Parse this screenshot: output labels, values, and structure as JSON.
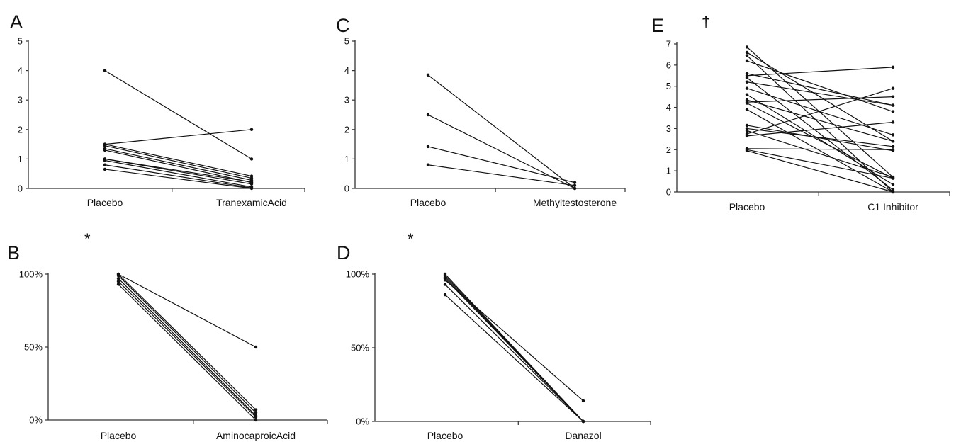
{
  "chart_data": [
    {
      "id": "A",
      "panel_label": "A",
      "marker": "",
      "type": "line",
      "categories": [
        "Placebo",
        "TranexamicAcid"
      ],
      "y_ticks": [
        "0",
        "1",
        "2",
        "3",
        "4",
        "5"
      ],
      "ylim": [
        0,
        5
      ],
      "series": [
        {
          "values": [
            4.0,
            1.0
          ]
        },
        {
          "values": [
            1.5,
            2.0
          ]
        },
        {
          "values": [
            1.5,
            0.42
          ]
        },
        {
          "values": [
            1.45,
            0.35
          ]
        },
        {
          "values": [
            1.35,
            0.28
          ]
        },
        {
          "values": [
            1.3,
            0.2
          ]
        },
        {
          "values": [
            1.0,
            0.15
          ]
        },
        {
          "values": [
            1.0,
            0.22
          ]
        },
        {
          "values": [
            0.95,
            0.05
          ]
        },
        {
          "values": [
            0.8,
            0.02
          ]
        },
        {
          "values": [
            0.65,
            0.0
          ]
        }
      ]
    },
    {
      "id": "C",
      "panel_label": "C",
      "marker": "",
      "type": "line",
      "categories": [
        "Placebo",
        "Methyltestosterone"
      ],
      "y_ticks": [
        "0",
        "1",
        "2",
        "3",
        "4",
        "5"
      ],
      "ylim": [
        0,
        5
      ],
      "series": [
        {
          "values": [
            3.85,
            0.0
          ]
        },
        {
          "values": [
            2.5,
            0.0
          ]
        },
        {
          "values": [
            1.42,
            0.2
          ]
        },
        {
          "values": [
            0.8,
            0.1
          ]
        }
      ]
    },
    {
      "id": "E",
      "panel_label": "E",
      "marker": "†",
      "type": "line",
      "categories": [
        "Placebo",
        "C1 Inhibitor"
      ],
      "y_ticks": [
        "0",
        "1",
        "2",
        "3",
        "4",
        "5",
        "6",
        "7"
      ],
      "ylim": [
        0,
        7
      ],
      "series": [
        {
          "values": [
            6.85,
            0.7
          ]
        },
        {
          "values": [
            6.6,
            2.4
          ]
        },
        {
          "values": [
            6.45,
            0.0
          ]
        },
        {
          "values": [
            6.2,
            3.8
          ]
        },
        {
          "values": [
            5.6,
            4.1
          ]
        },
        {
          "values": [
            5.5,
            5.9
          ]
        },
        {
          "values": [
            5.4,
            0.1
          ]
        },
        {
          "values": [
            5.2,
            4.1
          ]
        },
        {
          "values": [
            4.9,
            2.7
          ]
        },
        {
          "values": [
            4.6,
            0.35
          ]
        },
        {
          "values": [
            4.35,
            2.4
          ]
        },
        {
          "values": [
            4.25,
            4.5
          ]
        },
        {
          "values": [
            4.2,
            0.65
          ]
        },
        {
          "values": [
            3.9,
            0.0
          ]
        },
        {
          "values": [
            3.15,
            1.95
          ]
        },
        {
          "values": [
            3.0,
            2.15
          ]
        },
        {
          "values": [
            2.9,
            0.7
          ]
        },
        {
          "values": [
            2.75,
            4.9
          ]
        },
        {
          "values": [
            2.65,
            3.3
          ]
        },
        {
          "values": [
            2.05,
            2.0
          ]
        },
        {
          "values": [
            2.0,
            0.65
          ]
        },
        {
          "values": [
            1.95,
            0.0
          ]
        }
      ]
    },
    {
      "id": "B",
      "panel_label": "B",
      "marker": "*",
      "type": "line",
      "categories": [
        "Placebo",
        "AminocaproicAcid"
      ],
      "y_ticks": [
        "0%",
        "50%",
        "100%"
      ],
      "ylim": [
        0,
        100
      ],
      "series": [
        {
          "values": [
            100,
            50
          ]
        },
        {
          "values": [
            100,
            7
          ]
        },
        {
          "values": [
            99,
            5
          ]
        },
        {
          "values": [
            97,
            3
          ]
        },
        {
          "values": [
            95,
            2
          ]
        },
        {
          "values": [
            93,
            0
          ]
        }
      ]
    },
    {
      "id": "D",
      "panel_label": "D",
      "marker": "*",
      "type": "line",
      "categories": [
        "Placebo",
        "Danazol"
      ],
      "y_ticks": [
        "0%",
        "50%",
        "100%"
      ],
      "ylim": [
        0,
        100
      ],
      "series": [
        {
          "values": [
            100,
            0
          ]
        },
        {
          "values": [
            99,
            0
          ]
        },
        {
          "values": [
            98,
            0
          ]
        },
        {
          "values": [
            97,
            0
          ]
        },
        {
          "values": [
            96,
            14
          ]
        },
        {
          "values": [
            93,
            0
          ]
        },
        {
          "values": [
            86,
            0
          ]
        }
      ]
    }
  ]
}
